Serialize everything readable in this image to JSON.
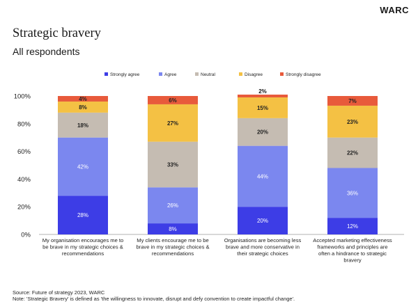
{
  "brand": {
    "logo": "WARC"
  },
  "chart_data": {
    "type": "bar",
    "stacked": true,
    "percent": true,
    "title": "Strategic bravery",
    "subtitle": "All respondents",
    "categories": [
      [
        "My organisation encourages me to",
        "be brave in my strategic choices &",
        "recommendations"
      ],
      [
        "My clients encourage me to be",
        "brave in my strategic choices &",
        "recommendations"
      ],
      [
        "Organisations are becoming less",
        "brave and more conservative in",
        "their strategic choices"
      ],
      [
        "Accepted marketing effectiveness",
        "frameworks and principles are",
        "often a hindrance to strategic",
        "bravery"
      ]
    ],
    "series": [
      {
        "name": "Strongly agree",
        "color": "#3d3de6",
        "values": [
          28,
          8,
          20,
          12
        ]
      },
      {
        "name": "Agree",
        "color": "#7b87ef",
        "values": [
          42,
          26,
          44,
          36
        ]
      },
      {
        "name": "Neutral",
        "color": "#c5bcb2",
        "values": [
          18,
          33,
          20,
          22
        ]
      },
      {
        "name": "Disagree",
        "color": "#f4c144",
        "values": [
          8,
          27,
          15,
          23
        ]
      },
      {
        "name": "Strongly disagree",
        "color": "#e85a3b",
        "values": [
          4,
          6,
          2,
          7
        ]
      }
    ],
    "ylim": [
      0,
      100
    ],
    "yticks": [
      "0%",
      "20%",
      "40%",
      "60%",
      "80%",
      "100%"
    ],
    "grid": false,
    "legend_position": "top-center"
  },
  "footer": {
    "source": "Source: Future of strategy 2023, WARC",
    "note": "Note: 'Strategic Bravery' is defined as 'the willingness to innovate, disrupt and defy convention to create impactful change'."
  }
}
